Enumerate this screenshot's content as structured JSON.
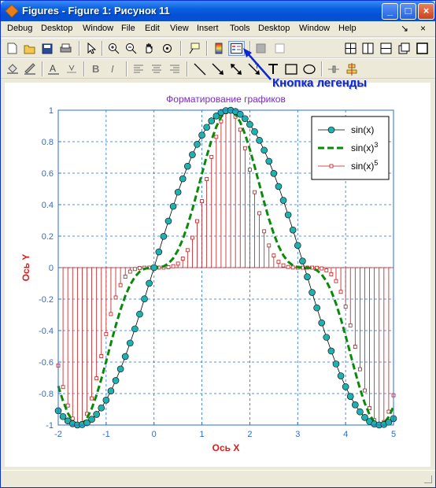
{
  "window": {
    "title": "Figures - Figure 1: Рисунок 11",
    "minimize_glyph": "_",
    "maximize_glyph": "□",
    "close_glyph": "×"
  },
  "menu": {
    "items": [
      "Debug",
      "Desktop",
      "Window",
      "File",
      "Edit",
      "View",
      "Insert",
      "Tools",
      "Desktop",
      "Window",
      "Help"
    ],
    "controls": [
      "↘",
      "×"
    ]
  },
  "toolbar1_icons": [
    "new-file-icon",
    "open-file-icon",
    "save-icon",
    "print-icon",
    "pointer-icon",
    "zoom-in-icon",
    "zoom-out-icon",
    "pan-icon",
    "rotate-icon",
    "data-cursor-icon",
    "colorbar-icon",
    "legend-icon",
    "stop-icon",
    "tile-icon"
  ],
  "toolbar2_icons": [
    "fill-color-icon",
    "line-color-icon",
    "text-color-icon",
    "bold-icon",
    "italic-icon",
    "align-left-icon",
    "align-center-icon",
    "align-right-icon",
    "line-icon",
    "arrow-icon",
    "double-arrow-icon",
    "text-arrow-icon",
    "text-icon",
    "rectangle-icon",
    "ellipse-icon",
    "pin-icon",
    "align-icon"
  ],
  "annotation": {
    "callout_text": "Кнопка легенды",
    "accent": "#0a28d8"
  },
  "chart_data": {
    "type": "line",
    "title": "Форматирование графиков",
    "xlabel": "Ось X",
    "ylabel": "Ось Y",
    "xlim": [
      -2,
      5
    ],
    "ylim": [
      -1,
      1
    ],
    "xticks": [
      "-2",
      "-1",
      "0",
      "1",
      "2",
      "3",
      "4",
      "5"
    ],
    "yticks": [
      "-1",
      "-0.8",
      "-0.6",
      "-0.4",
      "-0.2",
      "0",
      "0.2",
      "0.4",
      "0.6",
      "0.8",
      "1"
    ],
    "grid": true,
    "legend": "top-right",
    "x_range": {
      "start": -2,
      "stop": 5,
      "step": 0.1
    },
    "series": [
      {
        "name": "sin(x)",
        "function": "sin(x)",
        "style": "line-with-circles",
        "color": "#000000",
        "marker_color": "#20b0b0"
      },
      {
        "name": "sin(x)",
        "name_sup": "3",
        "function": "sin(x)^3",
        "style": "dashed",
        "color": "#0a8a0a"
      },
      {
        "name": "sin(x)",
        "name_sup": "5",
        "function": "sin(x)^5",
        "style": "stem-squares",
        "color": "#c01818"
      }
    ],
    "title_color": "#7a28c8",
    "axis_label_color": "#e01818",
    "tick_color": "#2a6cd0"
  }
}
